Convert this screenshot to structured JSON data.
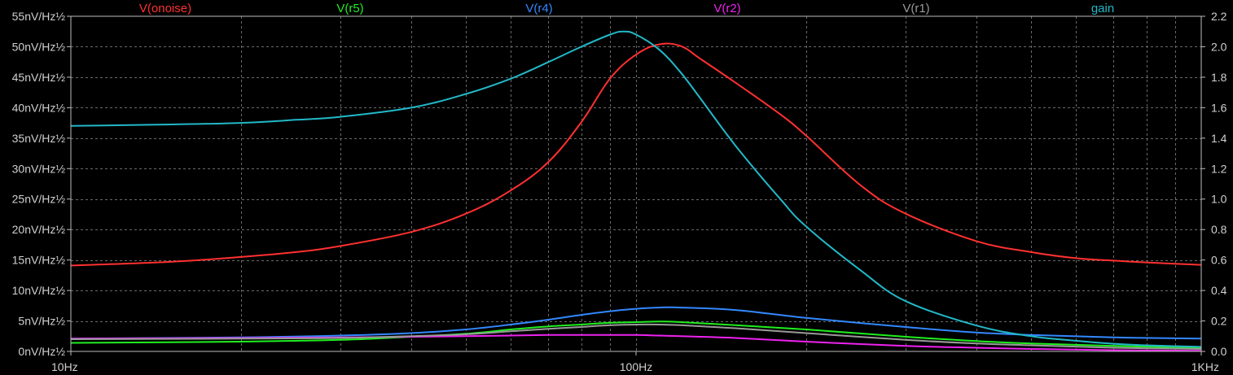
{
  "chart_data": {
    "type": "line",
    "x_scale": "log",
    "xlim": [
      10,
      1000
    ],
    "x_ticks": [
      {
        "value": 10,
        "label": "10Hz"
      },
      {
        "value": 100,
        "label": "100Hz"
      },
      {
        "value": 1000,
        "label": "1KHz"
      }
    ],
    "y_left": {
      "unit": "nV/Hz½",
      "lim": [
        0,
        55
      ],
      "ticks": [
        {
          "value": 0,
          "label": "0nV/Hz½"
        },
        {
          "value": 5,
          "label": "5nV/Hz½"
        },
        {
          "value": 10,
          "label": "10nV/Hz½"
        },
        {
          "value": 15,
          "label": "15nV/Hz½"
        },
        {
          "value": 20,
          "label": "20nV/Hz½"
        },
        {
          "value": 25,
          "label": "25nV/Hz½"
        },
        {
          "value": 30,
          "label": "30nV/Hz½"
        },
        {
          "value": 35,
          "label": "35nV/Hz½"
        },
        {
          "value": 40,
          "label": "40nV/Hz½"
        },
        {
          "value": 45,
          "label": "45nV/Hz½"
        },
        {
          "value": 50,
          "label": "50nV/Hz½"
        },
        {
          "value": 55,
          "label": "55nV/Hz½"
        }
      ]
    },
    "y_right": {
      "lim": [
        0,
        2.2
      ],
      "ticks": [
        {
          "value": 0,
          "label": "0.0"
        },
        {
          "value": 0.2,
          "label": "0.2"
        },
        {
          "value": 0.4,
          "label": "0.4"
        },
        {
          "value": 0.6,
          "label": "0.6"
        },
        {
          "value": 0.8,
          "label": "0.8"
        },
        {
          "value": 1.0,
          "label": "1.0"
        },
        {
          "value": 1.2,
          "label": "1.2"
        },
        {
          "value": 1.4,
          "label": "1.4"
        },
        {
          "value": 1.6,
          "label": "1.6"
        },
        {
          "value": 1.8,
          "label": "1.8"
        },
        {
          "value": 2.0,
          "label": "2.0"
        },
        {
          "value": 2.2,
          "label": "2.2"
        }
      ]
    },
    "grid": true,
    "legend_placement": "top",
    "series": [
      {
        "name": "V(onoise)",
        "color": "#ff3030",
        "axis": "left",
        "x": [
          10,
          15,
          20,
          25,
          30,
          40,
          50,
          60,
          70,
          80,
          90,
          100,
          110,
          120,
          130,
          150,
          180,
          200,
          250,
          300,
          400,
          500,
          600,
          700,
          800,
          1000
        ],
        "values": [
          14.1,
          14.7,
          15.5,
          16.3,
          17.3,
          19.6,
          22.6,
          26.4,
          31.1,
          37.6,
          44.8,
          48.7,
          50.4,
          50.1,
          48.0,
          44.1,
          38.9,
          35.4,
          27.2,
          22.6,
          18.1,
          16.3,
          15.3,
          14.9,
          14.6,
          14.2
        ]
      },
      {
        "name": "V(r5)",
        "color": "#20ee20",
        "axis": "left",
        "x": [
          10,
          20,
          30,
          40,
          50,
          60,
          70,
          80,
          90,
          100,
          110,
          120,
          150,
          200,
          300,
          400,
          500,
          700,
          1000
        ],
        "values": [
          1.4,
          1.6,
          1.9,
          2.4,
          2.9,
          3.6,
          4.1,
          4.4,
          4.7,
          4.8,
          4.9,
          4.8,
          4.3,
          3.6,
          2.4,
          1.7,
          1.3,
          0.9,
          0.6
        ]
      },
      {
        "name": "V(r4)",
        "color": "#3388ff",
        "axis": "left",
        "x": [
          10,
          20,
          30,
          40,
          50,
          60,
          70,
          80,
          90,
          100,
          110,
          120,
          150,
          200,
          300,
          400,
          500,
          700,
          1000
        ],
        "values": [
          2.1,
          2.3,
          2.6,
          3.0,
          3.6,
          4.4,
          5.2,
          6.0,
          6.6,
          7.0,
          7.2,
          7.2,
          6.8,
          5.5,
          4.0,
          3.1,
          2.7,
          2.3,
          2.1
        ]
      },
      {
        "name": "V(r2)",
        "color": "#ee22ee",
        "axis": "left",
        "x": [
          10,
          20,
          30,
          40,
          50,
          60,
          70,
          80,
          90,
          100,
          110,
          120,
          150,
          200,
          300,
          400,
          500,
          700,
          1000
        ],
        "values": [
          2.1,
          2.2,
          2.3,
          2.4,
          2.5,
          2.6,
          2.7,
          2.7,
          2.7,
          2.7,
          2.6,
          2.5,
          2.2,
          1.6,
          0.9,
          0.6,
          0.4,
          0.2,
          0.1
        ]
      },
      {
        "name": "V(r1)",
        "color": "#9a9a9a",
        "axis": "left",
        "x": [
          10,
          20,
          30,
          40,
          50,
          60,
          70,
          80,
          90,
          100,
          110,
          120,
          150,
          200,
          300,
          400,
          500,
          700,
          1000
        ],
        "values": [
          2.0,
          2.1,
          2.2,
          2.5,
          2.8,
          3.3,
          3.7,
          4.0,
          4.3,
          4.4,
          4.4,
          4.3,
          3.8,
          3.0,
          1.9,
          1.3,
          1.0,
          0.6,
          0.4
        ]
      },
      {
        "name": "gain",
        "color": "#22b8c8",
        "axis": "right",
        "x": [
          10,
          15,
          20,
          25,
          30,
          40,
          50,
          60,
          70,
          80,
          90,
          95,
          100,
          110,
          120,
          130,
          150,
          180,
          200,
          250,
          300,
          400,
          500,
          600,
          700,
          800,
          1000
        ],
        "values": [
          1.48,
          1.49,
          1.5,
          1.52,
          1.54,
          1.6,
          1.69,
          1.79,
          1.9,
          2.0,
          2.08,
          2.1,
          2.08,
          1.98,
          1.83,
          1.66,
          1.35,
          1.0,
          0.82,
          0.53,
          0.33,
          0.17,
          0.1,
          0.07,
          0.05,
          0.04,
          0.03
        ]
      }
    ]
  }
}
